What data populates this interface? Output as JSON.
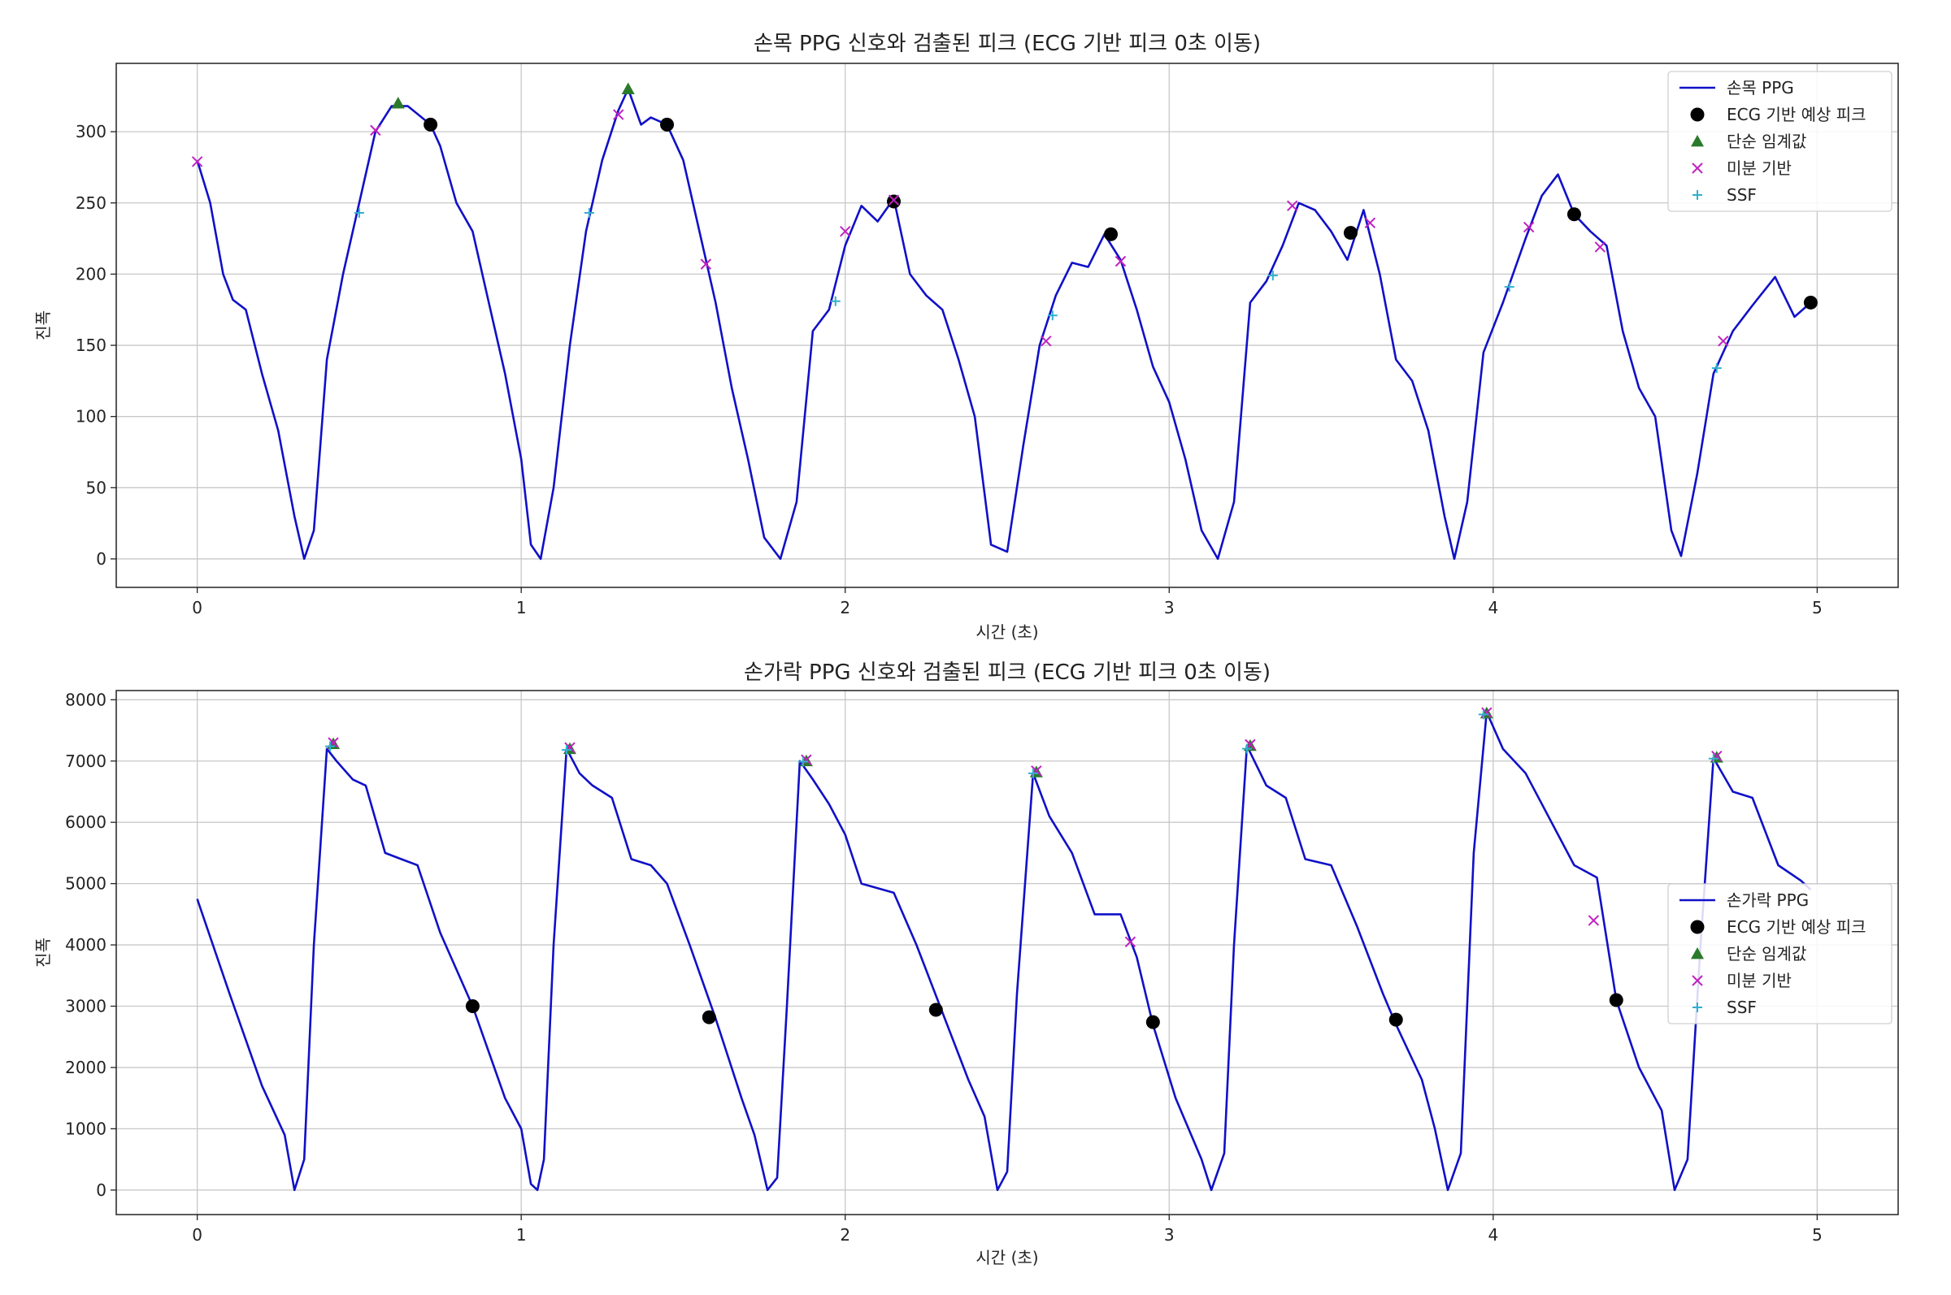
{
  "chart_data": [
    {
      "type": "line",
      "title": "손목 PPG 신호와 검출된 피크 (ECG 기반 피크 0초 이동)",
      "xlabel": "시간 (초)",
      "ylabel": "진폭",
      "xlim": [
        -0.25,
        5.25
      ],
      "ylim": [
        -20,
        348
      ],
      "xticks": [
        0,
        1,
        2,
        3,
        4,
        5
      ],
      "yticks": [
        0,
        50,
        100,
        150,
        200,
        250,
        300
      ],
      "grid": true,
      "legend_position": "top-right",
      "colors": {
        "line": "#1010c8",
        "ecg": "#000000",
        "threshold": "#2a7a2a",
        "derivative": "#c020c0",
        "ssf": "#30b0d0"
      },
      "line": {
        "name": "손목 PPG",
        "points": [
          [
            0,
            280
          ],
          [
            0.04,
            250
          ],
          [
            0.08,
            200
          ],
          [
            0.11,
            182
          ],
          [
            0.15,
            175
          ],
          [
            0.2,
            130
          ],
          [
            0.25,
            90
          ],
          [
            0.3,
            30
          ],
          [
            0.33,
            0
          ],
          [
            0.36,
            20
          ],
          [
            0.4,
            140
          ],
          [
            0.45,
            200
          ],
          [
            0.5,
            250
          ],
          [
            0.55,
            300
          ],
          [
            0.6,
            318
          ],
          [
            0.65,
            318
          ],
          [
            0.72,
            305
          ],
          [
            0.75,
            290
          ],
          [
            0.8,
            250
          ],
          [
            0.85,
            230
          ],
          [
            0.9,
            180
          ],
          [
            0.95,
            130
          ],
          [
            1.0,
            70
          ],
          [
            1.03,
            10
          ],
          [
            1.06,
            0
          ],
          [
            1.1,
            50
          ],
          [
            1.15,
            150
          ],
          [
            1.2,
            230
          ],
          [
            1.25,
            280
          ],
          [
            1.3,
            315
          ],
          [
            1.33,
            330
          ],
          [
            1.37,
            305
          ],
          [
            1.4,
            310
          ],
          [
            1.45,
            305
          ],
          [
            1.5,
            280
          ],
          [
            1.55,
            230
          ],
          [
            1.6,
            180
          ],
          [
            1.65,
            120
          ],
          [
            1.7,
            70
          ],
          [
            1.75,
            15
          ],
          [
            1.8,
            0
          ],
          [
            1.85,
            40
          ],
          [
            1.9,
            160
          ],
          [
            1.95,
            175
          ],
          [
            2.0,
            220
          ],
          [
            2.05,
            248
          ],
          [
            2.1,
            237
          ],
          [
            2.15,
            253
          ],
          [
            2.2,
            200
          ],
          [
            2.25,
            185
          ],
          [
            2.3,
            175
          ],
          [
            2.35,
            140
          ],
          [
            2.4,
            100
          ],
          [
            2.45,
            10
          ],
          [
            2.5,
            5
          ],
          [
            2.55,
            80
          ],
          [
            2.6,
            150
          ],
          [
            2.65,
            185
          ],
          [
            2.7,
            208
          ],
          [
            2.75,
            205
          ],
          [
            2.8,
            228
          ],
          [
            2.85,
            210
          ],
          [
            2.9,
            175
          ],
          [
            2.95,
            135
          ],
          [
            3.0,
            110
          ],
          [
            3.05,
            70
          ],
          [
            3.1,
            20
          ],
          [
            3.15,
            0
          ],
          [
            3.2,
            40
          ],
          [
            3.25,
            180
          ],
          [
            3.3,
            195
          ],
          [
            3.35,
            220
          ],
          [
            3.4,
            250
          ],
          [
            3.45,
            245
          ],
          [
            3.5,
            230
          ],
          [
            3.55,
            210
          ],
          [
            3.6,
            245
          ],
          [
            3.65,
            200
          ],
          [
            3.7,
            140
          ],
          [
            3.75,
            125
          ],
          [
            3.8,
            90
          ],
          [
            3.85,
            30
          ],
          [
            3.88,
            0
          ],
          [
            3.92,
            40
          ],
          [
            3.97,
            145
          ],
          [
            4.03,
            180
          ],
          [
            4.1,
            225
          ],
          [
            4.15,
            255
          ],
          [
            4.2,
            270
          ],
          [
            4.25,
            242
          ],
          [
            4.3,
            230
          ],
          [
            4.35,
            220
          ],
          [
            4.4,
            160
          ],
          [
            4.45,
            120
          ],
          [
            4.5,
            100
          ],
          [
            4.55,
            20
          ],
          [
            4.58,
            2
          ],
          [
            4.63,
            60
          ],
          [
            4.68,
            130
          ],
          [
            4.74,
            160
          ],
          [
            4.8,
            178
          ],
          [
            4.87,
            198
          ],
          [
            4.93,
            170
          ],
          [
            4.98,
            180
          ]
        ]
      },
      "markers": [
        {
          "name": "ECG 기반 예상 피크",
          "shape": "circle",
          "points": [
            [
              0.72,
              305
            ],
            [
              1.45,
              305
            ],
            [
              2.15,
              251
            ],
            [
              2.82,
              228
            ],
            [
              3.56,
              229
            ],
            [
              4.25,
              242
            ],
            [
              4.98,
              180
            ]
          ]
        },
        {
          "name": "단순 임계값",
          "shape": "triangle",
          "points": [
            [
              0.62,
              320
            ],
            [
              1.33,
              330
            ]
          ]
        },
        {
          "name": "미분 기반",
          "shape": "x",
          "points": [
            [
              0.0,
              279
            ],
            [
              0.55,
              301
            ],
            [
              1.3,
              312
            ],
            [
              1.57,
              207
            ],
            [
              2.0,
              230
            ],
            [
              2.15,
              252
            ],
            [
              2.62,
              153
            ],
            [
              2.85,
              209
            ],
            [
              3.38,
              248
            ],
            [
              3.62,
              236
            ],
            [
              4.11,
              233
            ],
            [
              4.33,
              219
            ],
            [
              4.71,
              153
            ]
          ]
        },
        {
          "name": "SSF",
          "shape": "plus",
          "points": [
            [
              0.5,
              243
            ],
            [
              1.21,
              243
            ],
            [
              1.97,
              181
            ],
            [
              2.64,
              171
            ],
            [
              3.32,
              199
            ],
            [
              4.05,
              191
            ],
            [
              4.69,
              134
            ]
          ]
        }
      ]
    },
    {
      "type": "line",
      "title": "손가락 PPG 신호와 검출된 피크 (ECG 기반 피크 0초 이동)",
      "xlabel": "시간 (초)",
      "ylabel": "진폭",
      "xlim": [
        -0.25,
        5.25
      ],
      "ylim": [
        -400,
        8150
      ],
      "xticks": [
        0,
        1,
        2,
        3,
        4,
        5
      ],
      "yticks": [
        0,
        1000,
        2000,
        3000,
        4000,
        5000,
        6000,
        7000,
        8000
      ],
      "grid": true,
      "legend_position": "center-right",
      "colors": {
        "line": "#1010c8",
        "ecg": "#000000",
        "threshold": "#2a7a2a",
        "derivative": "#c020c0",
        "ssf": "#30b0d0"
      },
      "line": {
        "name": "손가락 PPG",
        "points": [
          [
            0,
            4750
          ],
          [
            0.1,
            3200
          ],
          [
            0.2,
            1700
          ],
          [
            0.27,
            900
          ],
          [
            0.3,
            0
          ],
          [
            0.33,
            500
          ],
          [
            0.36,
            4000
          ],
          [
            0.4,
            7200
          ],
          [
            0.43,
            7000
          ],
          [
            0.48,
            6700
          ],
          [
            0.52,
            6600
          ],
          [
            0.58,
            5500
          ],
          [
            0.63,
            5400
          ],
          [
            0.68,
            5300
          ],
          [
            0.75,
            4200
          ],
          [
            0.85,
            3000
          ],
          [
            0.95,
            1500
          ],
          [
            1.0,
            1000
          ],
          [
            1.03,
            100
          ],
          [
            1.05,
            0
          ],
          [
            1.07,
            500
          ],
          [
            1.1,
            4000
          ],
          [
            1.14,
            7200
          ],
          [
            1.18,
            6800
          ],
          [
            1.22,
            6600
          ],
          [
            1.28,
            6400
          ],
          [
            1.34,
            5400
          ],
          [
            1.4,
            5300
          ],
          [
            1.45,
            5000
          ],
          [
            1.52,
            4000
          ],
          [
            1.6,
            2800
          ],
          [
            1.68,
            1500
          ],
          [
            1.72,
            900
          ],
          [
            1.76,
            0
          ],
          [
            1.79,
            200
          ],
          [
            1.82,
            3000
          ],
          [
            1.86,
            7000
          ],
          [
            1.9,
            6700
          ],
          [
            1.95,
            6300
          ],
          [
            2.0,
            5800
          ],
          [
            2.05,
            5000
          ],
          [
            2.15,
            4850
          ],
          [
            2.22,
            4000
          ],
          [
            2.3,
            2900
          ],
          [
            2.38,
            1800
          ],
          [
            2.43,
            1200
          ],
          [
            2.47,
            0
          ],
          [
            2.5,
            300
          ],
          [
            2.53,
            3200
          ],
          [
            2.58,
            6800
          ],
          [
            2.63,
            6100
          ],
          [
            2.7,
            5500
          ],
          [
            2.77,
            4500
          ],
          [
            2.85,
            4500
          ],
          [
            2.9,
            3800
          ],
          [
            2.95,
            2700
          ],
          [
            3.02,
            1500
          ],
          [
            3.1,
            500
          ],
          [
            3.13,
            0
          ],
          [
            3.17,
            600
          ],
          [
            3.2,
            4000
          ],
          [
            3.24,
            7250
          ],
          [
            3.3,
            6600
          ],
          [
            3.36,
            6400
          ],
          [
            3.42,
            5400
          ],
          [
            3.5,
            5300
          ],
          [
            3.58,
            4300
          ],
          [
            3.66,
            3200
          ],
          [
            3.7,
            2700
          ],
          [
            3.78,
            1800
          ],
          [
            3.82,
            1000
          ],
          [
            3.86,
            0
          ],
          [
            3.9,
            600
          ],
          [
            3.94,
            5500
          ],
          [
            3.98,
            7800
          ],
          [
            4.03,
            7200
          ],
          [
            4.1,
            6800
          ],
          [
            4.18,
            6000
          ],
          [
            4.25,
            5300
          ],
          [
            4.32,
            5100
          ],
          [
            4.38,
            3100
          ],
          [
            4.45,
            2000
          ],
          [
            4.52,
            1300
          ],
          [
            4.56,
            0
          ],
          [
            4.6,
            500
          ],
          [
            4.64,
            4000
          ],
          [
            4.68,
            7050
          ],
          [
            4.74,
            6500
          ],
          [
            4.8,
            6400
          ],
          [
            4.88,
            5300
          ],
          [
            4.95,
            5050
          ],
          [
            4.98,
            4900
          ]
        ]
      },
      "markers": [
        {
          "name": "ECG 기반 예상 피크",
          "shape": "circle",
          "points": [
            [
              0.85,
              3000
            ],
            [
              1.58,
              2820
            ],
            [
              2.28,
              2940
            ],
            [
              2.95,
              2740
            ],
            [
              3.7,
              2780
            ],
            [
              4.38,
              3100
            ]
          ]
        },
        {
          "name": "단순 임계값",
          "shape": "triangle",
          "points": [
            [
              0.42,
              7280
            ],
            [
              1.15,
              7200
            ],
            [
              1.88,
              7000
            ],
            [
              2.59,
              6820
            ],
            [
              3.25,
              7250
            ],
            [
              3.98,
              7780
            ],
            [
              4.69,
              7060
            ]
          ]
        },
        {
          "name": "미분 기반",
          "shape": "x",
          "points": [
            [
              0.42,
              7300
            ],
            [
              1.15,
              7220
            ],
            [
              1.88,
              7020
            ],
            [
              2.59,
              6840
            ],
            [
              3.25,
              7270
            ],
            [
              3.98,
              7790
            ],
            [
              4.69,
              7080
            ],
            [
              2.88,
              4050
            ],
            [
              4.31,
              4400
            ]
          ]
        },
        {
          "name": "SSF",
          "shape": "plus",
          "points": [
            [
              0.41,
              7240
            ],
            [
              1.14,
              7180
            ],
            [
              1.87,
              6990
            ],
            [
              2.58,
              6800
            ],
            [
              3.24,
              7200
            ],
            [
              3.97,
              7760
            ],
            [
              4.68,
              7040
            ]
          ]
        }
      ]
    }
  ]
}
